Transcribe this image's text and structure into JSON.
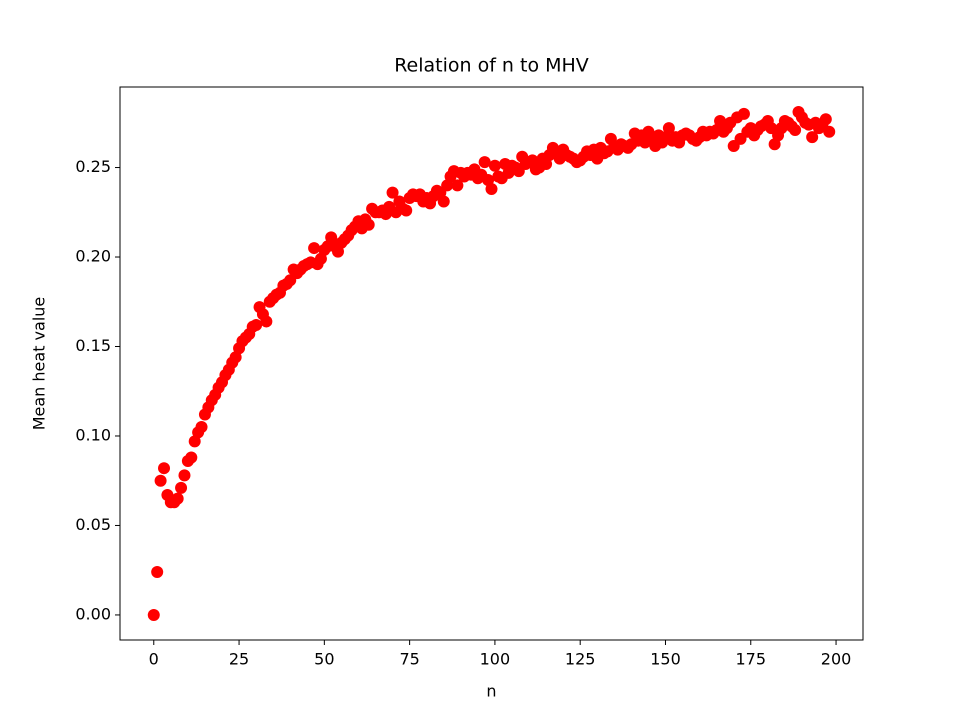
{
  "chart_data": {
    "type": "scatter",
    "title": "Relation of n to MHV",
    "x_label": "n",
    "y_label": "Mean heat value",
    "color": "#ff0000",
    "grid": false,
    "xlim": [
      -9.9,
      207.9
    ],
    "ylim": [
      -0.014,
      0.295
    ],
    "xticks": [
      0,
      25,
      50,
      75,
      100,
      125,
      150,
      175,
      200
    ],
    "yticks": [
      {
        "value": 0,
        "label": "0.00"
      },
      {
        "value": 0.05,
        "label": "0.05"
      },
      {
        "value": 0.1,
        "label": "0.10"
      },
      {
        "value": 0.15,
        "label": "0.15"
      },
      {
        "value": 0.2,
        "label": "0.20"
      },
      {
        "value": 0.25,
        "label": "0.25"
      }
    ],
    "x": [
      0,
      1,
      2,
      3,
      4,
      5,
      6,
      7,
      8,
      9,
      10,
      11,
      12,
      13,
      14,
      15,
      16,
      17,
      18,
      19,
      20,
      21,
      22,
      23,
      24,
      25,
      26,
      27,
      28,
      29,
      30,
      31,
      32,
      33,
      34,
      35,
      36,
      37,
      38,
      39,
      40,
      41,
      42,
      43,
      44,
      45,
      46,
      47,
      48,
      49,
      50,
      51,
      52,
      53,
      54,
      55,
      56,
      57,
      58,
      59,
      60,
      61,
      62,
      63,
      64,
      65,
      66,
      67,
      68,
      69,
      70,
      71,
      72,
      73,
      74,
      75,
      76,
      77,
      78,
      79,
      80,
      81,
      82,
      83,
      84,
      85,
      86,
      87,
      88,
      89,
      90,
      91,
      92,
      93,
      94,
      95,
      96,
      97,
      98,
      99,
      100,
      101,
      102,
      103,
      104,
      105,
      106,
      107,
      108,
      109,
      110,
      111,
      112,
      113,
      114,
      115,
      116,
      117,
      118,
      119,
      120,
      121,
      122,
      123,
      124,
      125,
      126,
      127,
      128,
      129,
      130,
      131,
      132,
      133,
      134,
      135,
      136,
      137,
      138,
      139,
      140,
      141,
      142,
      143,
      144,
      145,
      146,
      147,
      148,
      149,
      150,
      151,
      152,
      153,
      154,
      155,
      156,
      157,
      158,
      159,
      160,
      161,
      162,
      163,
      164,
      165,
      166,
      167,
      168,
      169,
      170,
      171,
      172,
      173,
      174,
      175,
      176,
      177,
      178,
      179,
      180,
      181,
      182,
      183,
      184,
      185,
      186,
      187,
      188,
      189,
      190,
      191,
      192,
      193,
      194,
      195,
      196,
      197,
      198
    ],
    "values": [
      0,
      0.024,
      0.075,
      0.082,
      0.067,
      0.063,
      0.063,
      0.065,
      0.071,
      0.078,
      0.086,
      0.088,
      0.097,
      0.102,
      0.105,
      0.112,
      0.116,
      0.12,
      0.123,
      0.127,
      0.13,
      0.134,
      0.137,
      0.141,
      0.144,
      0.149,
      0.153,
      0.155,
      0.157,
      0.161,
      0.162,
      0.172,
      0.168,
      0.164,
      0.175,
      0.177,
      0.179,
      0.18,
      0.184,
      0.185,
      0.187,
      0.193,
      0.191,
      0.193,
      0.195,
      0.196,
      0.197,
      0.205,
      0.196,
      0.199,
      0.204,
      0.206,
      0.211,
      0.206,
      0.203,
      0.208,
      0.21,
      0.212,
      0.215,
      0.217,
      0.22,
      0.216,
      0.221,
      0.218,
      0.227,
      0.225,
      0.225,
      0.226,
      0.224,
      0.228,
      0.236,
      0.225,
      0.231,
      0.227,
      0.226,
      0.233,
      0.235,
      0.234,
      0.235,
      0.231,
      0.233,
      0.23,
      0.234,
      0.237,
      0.236,
      0.231,
      0.24,
      0.245,
      0.248,
      0.24,
      0.247,
      0.245,
      0.247,
      0.246,
      0.249,
      0.244,
      0.246,
      0.253,
      0.243,
      0.238,
      0.251,
      0.245,
      0.244,
      0.252,
      0.247,
      0.251,
      0.25,
      0.248,
      0.256,
      0.252,
      0.253,
      0.254,
      0.249,
      0.25,
      0.255,
      0.252,
      0.257,
      0.261,
      0.259,
      0.255,
      0.26,
      0.257,
      0.256,
      0.255,
      0.253,
      0.254,
      0.256,
      0.259,
      0.257,
      0.26,
      0.255,
      0.261,
      0.258,
      0.259,
      0.266,
      0.262,
      0.26,
      0.263,
      0.262,
      0.261,
      0.263,
      0.269,
      0.265,
      0.268,
      0.264,
      0.27,
      0.266,
      0.262,
      0.268,
      0.264,
      0.267,
      0.272,
      0.265,
      0.267,
      0.264,
      0.268,
      0.269,
      0.268,
      0.266,
      0.265,
      0.267,
      0.27,
      0.268,
      0.27,
      0.269,
      0.271,
      0.276,
      0.27,
      0.272,
      0.275,
      0.262,
      0.278,
      0.266,
      0.28,
      0.27,
      0.272,
      0.268,
      0.271,
      0.273,
      0.274,
      0.276,
      0.272,
      0.263,
      0.268,
      0.272,
      0.276,
      0.275,
      0.273,
      0.271,
      0.281,
      0.278,
      0.275,
      0.274,
      0.267,
      0.275,
      0.272,
      0.274,
      0.277,
      0.27
    ]
  }
}
